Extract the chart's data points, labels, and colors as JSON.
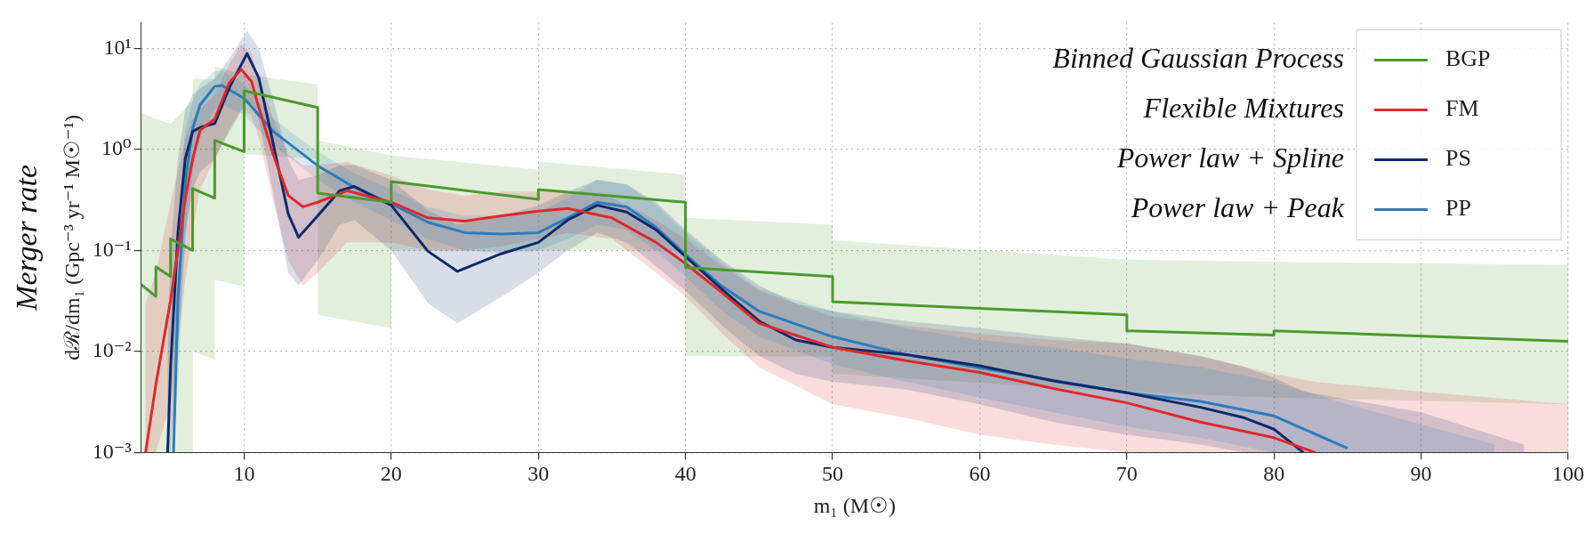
{
  "chart_data": {
    "type": "line",
    "xlabel": "m₁ (M☉)",
    "ylabel": "dℛ/dm₁ (Gpc⁻³ yr⁻¹ M☉⁻¹)",
    "xlim": [
      3,
      100
    ],
    "xticks": [
      10,
      20,
      30,
      40,
      50,
      60,
      70,
      80,
      90,
      100
    ],
    "ylim": [
      0.001,
      18
    ],
    "yticks": [
      {
        "value": 0.001,
        "label": "10⁻³"
      },
      {
        "value": 0.01,
        "label": "10⁻²"
      },
      {
        "value": 0.1,
        "label": "10⁻¹"
      },
      {
        "value": 1,
        "label": "10⁰"
      },
      {
        "value": 10,
        "label": "10¹"
      }
    ],
    "log": "y",
    "grid": true,
    "legend": "top right",
    "annotations": [
      "Binned Gaussian Process",
      "Flexible Mixtures",
      "Power law + Spline",
      "Power law + Peak",
      "Merger rate"
    ],
    "series": [
      {
        "name": "BGP",
        "color": "#4a9a2c",
        "x": [
          3,
          4,
          4,
          5,
          5,
          6.5,
          6.5,
          8,
          8,
          10,
          10,
          15,
          15,
          20,
          20,
          30,
          30,
          40,
          40,
          50,
          50,
          70,
          70,
          80,
          80,
          100
        ],
        "values": [
          0.046,
          0.035,
          0.069,
          0.055,
          0.13,
          0.1,
          0.41,
          0.33,
          1.23,
          0.95,
          3.8,
          2.6,
          0.37,
          0.3,
          0.48,
          0.32,
          0.4,
          0.3,
          0.068,
          0.055,
          0.031,
          0.023,
          0.016,
          0.0145,
          0.016,
          0.0126
        ],
        "lower": [
          0.001,
          0.001,
          0.001,
          0.001,
          0.001,
          0.001,
          0.01,
          0.0083,
          0.051,
          0.044,
          0.9,
          0.8,
          0.023,
          0.017,
          0.1,
          0.1,
          0.1,
          0.1,
          0.009,
          0.0089,
          0.006,
          0.004,
          0.004,
          0.0035,
          0.0035,
          0.003
        ],
        "upper": [
          2.3,
          2.0,
          2.0,
          1.8,
          1.8,
          3,
          5,
          5,
          6.6,
          5.5,
          5.5,
          4.4,
          1.23,
          0.87,
          0.87,
          0.63,
          0.76,
          0.56,
          0.21,
          0.18,
          0.126,
          0.081,
          0.081,
          0.077,
          0.077,
          0.072
        ]
      },
      {
        "name": "FM",
        "color": "#e0282c",
        "x": [
          3.3,
          4,
          5,
          6,
          6.5,
          7,
          8,
          9,
          9.8,
          10.5,
          11,
          12,
          13,
          14,
          15,
          17,
          20,
          22.5,
          25,
          27.5,
          30,
          32,
          35,
          38,
          40,
          42.5,
          45,
          50,
          55,
          60,
          65,
          70,
          75,
          80,
          82.8,
          90,
          100
        ],
        "values": [
          0.001,
          0.0047,
          0.032,
          0.32,
          0.8,
          1.55,
          2.0,
          4.6,
          6.2,
          4.7,
          2.6,
          0.87,
          0.35,
          0.27,
          0.3,
          0.39,
          0.3,
          0.21,
          0.195,
          0.22,
          0.245,
          0.26,
          0.21,
          0.12,
          0.074,
          0.038,
          0.019,
          0.011,
          0.0081,
          0.0062,
          0.0043,
          0.0031,
          0.002,
          0.0014,
          0.001,
          null,
          null
        ],
        "lower": [
          0.001,
          0.001,
          0.003,
          0.05,
          0.15,
          0.4,
          0.8,
          1.6,
          2.5,
          2.2,
          1.3,
          0.3,
          0.08,
          0.045,
          0.06,
          0.12,
          0.12,
          0.1,
          0.1,
          0.11,
          0.13,
          0.15,
          0.13,
          0.06,
          0.035,
          0.015,
          0.007,
          0.003,
          0.0022,
          0.0015,
          0.0012,
          0.001,
          0.001,
          0.001,
          0.001,
          0.001,
          0.001
        ],
        "upper": [
          0.03,
          0.06,
          0.3,
          1.3,
          2,
          2.5,
          3.5,
          7,
          11,
          9,
          5,
          2,
          0.9,
          0.7,
          0.7,
          0.75,
          0.55,
          0.4,
          0.35,
          0.38,
          0.38,
          0.38,
          0.33,
          0.2,
          0.13,
          0.07,
          0.04,
          0.022,
          0.018,
          0.015,
          0.013,
          0.012,
          0.009,
          0.006,
          0.005,
          0.004,
          0.003
        ]
      },
      {
        "name": "PS",
        "color": "#0e2a6b",
        "x": [
          4.8,
          5,
          5.5,
          6,
          6.5,
          7,
          8,
          9,
          10.2,
          11,
          12,
          13,
          13.7,
          15,
          16.5,
          17.5,
          20,
          22.5,
          24.5,
          27.5,
          30,
          32,
          34,
          36,
          38,
          40,
          42.5,
          45,
          47.5,
          50,
          55,
          60,
          65,
          70,
          75,
          78,
          80,
          82,
          90,
          97
        ],
        "values": [
          0.001,
          0.0069,
          0.15,
          0.81,
          1.5,
          1.65,
          1.8,
          4.1,
          8.9,
          5.1,
          1.1,
          0.23,
          0.135,
          0.22,
          0.39,
          0.43,
          0.28,
          0.098,
          0.062,
          0.093,
          0.12,
          0.2,
          0.28,
          0.24,
          0.16,
          0.087,
          0.041,
          0.02,
          0.013,
          0.011,
          0.0093,
          0.0072,
          0.0051,
          0.0039,
          0.0028,
          0.0022,
          0.0017,
          0.001,
          null,
          null
        ],
        "lower": [
          0.001,
          0.001,
          0.01,
          0.15,
          0.4,
          0.6,
          0.8,
          1.5,
          3,
          2,
          0.35,
          0.06,
          0.045,
          0.08,
          0.18,
          0.2,
          0.1,
          0.03,
          0.019,
          0.035,
          0.06,
          0.1,
          0.15,
          0.12,
          0.07,
          0.04,
          0.018,
          0.009,
          0.006,
          0.005,
          0.0042,
          0.003,
          0.002,
          0.0015,
          0.0012,
          0.001,
          0.001,
          0.001,
          0.001,
          0.001
        ],
        "upper": [
          0.01,
          0.1,
          0.8,
          2.5,
          3.5,
          4,
          5,
          8,
          15,
          10,
          3,
          0.8,
          0.5,
          0.55,
          0.7,
          0.7,
          0.5,
          0.25,
          0.18,
          0.22,
          0.28,
          0.38,
          0.5,
          0.45,
          0.3,
          0.16,
          0.08,
          0.045,
          0.03,
          0.025,
          0.02,
          0.017,
          0.014,
          0.012,
          0.009,
          0.007,
          0.0055,
          0.004,
          0.0025,
          0.0012
        ]
      },
      {
        "name": "PP",
        "color": "#2a7dbd",
        "x": [
          5.2,
          5.5,
          6,
          6.5,
          7,
          8,
          8.5,
          10,
          12,
          15,
          17.5,
          20,
          22.5,
          25,
          27.5,
          30,
          32,
          34,
          36,
          38,
          40,
          42.5,
          45,
          50,
          55,
          60,
          65,
          70,
          75,
          80,
          85,
          95
        ],
        "values": [
          0.001,
          0.032,
          0.47,
          1.6,
          2.75,
          4.2,
          4.3,
          3.2,
          1.5,
          0.69,
          0.42,
          0.29,
          0.19,
          0.15,
          0.145,
          0.15,
          0.21,
          0.3,
          0.27,
          0.17,
          0.091,
          0.044,
          0.025,
          0.014,
          0.0093,
          0.0069,
          0.0052,
          0.0039,
          0.0032,
          0.0023,
          0.0011,
          null
        ],
        "lower": [
          0.001,
          0.005,
          0.12,
          0.6,
          1.3,
          2.5,
          2.8,
          2.2,
          1.1,
          0.5,
          0.3,
          0.2,
          0.13,
          0.1,
          0.095,
          0.1,
          0.13,
          0.18,
          0.16,
          0.1,
          0.055,
          0.025,
          0.014,
          0.0075,
          0.005,
          0.0035,
          0.0025,
          0.0018,
          0.0014,
          0.001,
          0.001,
          0.001
        ],
        "upper": [
          0.02,
          0.2,
          1.5,
          3,
          4.5,
          6,
          6,
          4.5,
          2,
          0.95,
          0.58,
          0.4,
          0.27,
          0.22,
          0.22,
          0.24,
          0.33,
          0.5,
          0.45,
          0.28,
          0.15,
          0.075,
          0.042,
          0.025,
          0.017,
          0.013,
          0.011,
          0.0085,
          0.007,
          0.005,
          0.003,
          0.0012
        ]
      }
    ]
  }
}
